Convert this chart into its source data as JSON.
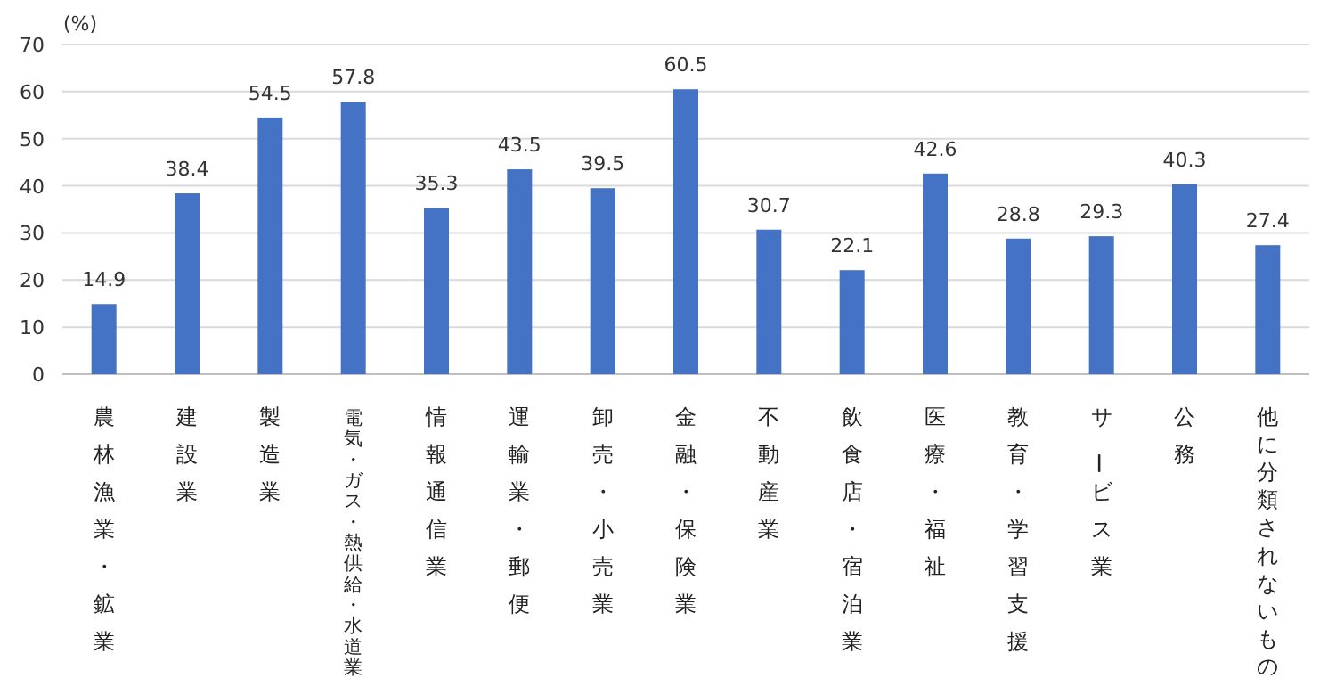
{
  "chart_data": {
    "type": "bar",
    "ylabel": "(%)",
    "categories": [
      "農林漁業・鉱業",
      "建設業",
      "製造業",
      "電気・ガス・熱供給・水道業",
      "情報通信業",
      "運輸業・郵便",
      "卸売・小売業",
      "金融・保険業",
      "不動産業",
      "飲食店・宿泊業",
      "医療・福祉",
      "教育・学習支援",
      "サービス業",
      "公務",
      "他に分類されないもの"
    ],
    "values": [
      14.9,
      38.4,
      54.5,
      57.8,
      35.3,
      43.5,
      39.5,
      60.5,
      30.7,
      22.1,
      42.6,
      28.8,
      29.3,
      40.3,
      27.4
    ],
    "color": "#4472c4",
    "data_labels": true,
    "grid": "y",
    "ylim": [
      0,
      70
    ],
    "yticks": [
      0,
      10,
      20,
      30,
      40,
      50,
      60,
      70
    ]
  }
}
